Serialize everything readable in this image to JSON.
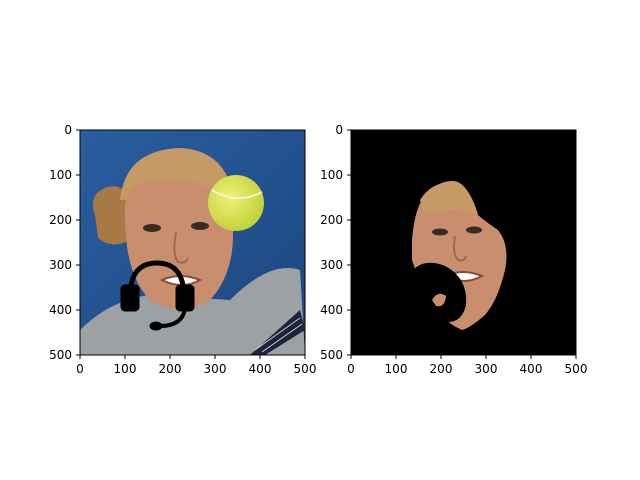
{
  "figure": {
    "panels": [
      {
        "name": "left",
        "content": "photo-with-headset-overlay",
        "xticks": [
          "0",
          "100",
          "200",
          "300",
          "400",
          "500"
        ],
        "yticks": [
          "0",
          "100",
          "200",
          "300",
          "400",
          "500"
        ]
      },
      {
        "name": "right",
        "content": "masked-face-segmentation",
        "xticks": [
          "0",
          "100",
          "200",
          "300",
          "400",
          "500"
        ],
        "yticks": [
          "0",
          "100",
          "200",
          "300",
          "400",
          "500"
        ]
      }
    ],
    "colors": {
      "background_blue": "#1f4d8c",
      "skin": "#c98e6e",
      "hair": "#b98954",
      "shirt": "#9da1a4",
      "ball": "#d4e04a",
      "mask_black": "#000000",
      "headset_icon": "#000000"
    },
    "icons": [
      "headset-icon"
    ]
  }
}
